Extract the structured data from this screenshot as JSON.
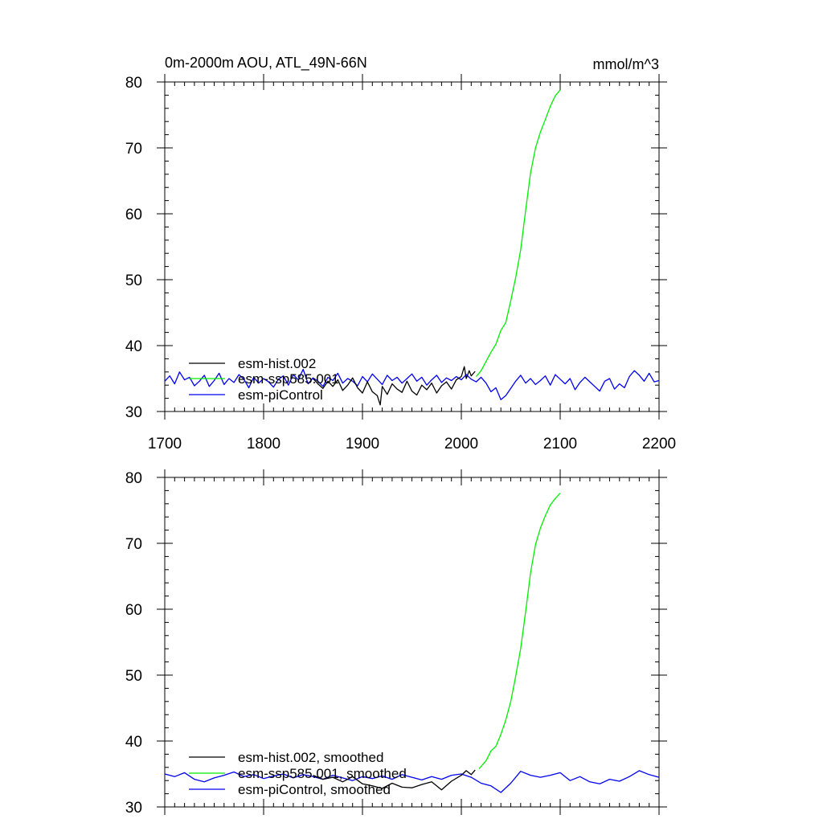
{
  "header": {
    "title": "0m-2000m AOU, ATL_49N-66N",
    "units": "mmol/m^3"
  },
  "colors": {
    "esm_hist": "#000000",
    "esm_ssp585": "#00ee00",
    "esm_piControl": "#0000ee"
  },
  "chart_data": [
    {
      "type": "line",
      "panel": "top",
      "xlim": [
        1700,
        2200
      ],
      "ylim": [
        30,
        80
      ],
      "x_ticks": [
        1700,
        1800,
        1900,
        2000,
        2100,
        2200
      ],
      "x_tick_labels": [
        "1700",
        "1800",
        "1900",
        "2000",
        "2100",
        "2200"
      ],
      "y_ticks": [
        30,
        40,
        50,
        60,
        70,
        80
      ],
      "y_tick_labels": [
        "30",
        "40",
        "50",
        "60",
        "70",
        "80"
      ],
      "legend_position": "lower-left",
      "series": [
        {
          "name": "esm-hist.002",
          "color": "#000000",
          "x": [
            1850,
            1855,
            1860,
            1865,
            1870,
            1875,
            1880,
            1885,
            1890,
            1895,
            1900,
            1905,
            1910,
            1915,
            1918,
            1920,
            1925,
            1930,
            1935,
            1940,
            1945,
            1950,
            1955,
            1960,
            1965,
            1970,
            1975,
            1980,
            1985,
            1990,
            1995,
            2000,
            2003,
            2005,
            2008,
            2010,
            2014
          ],
          "y": [
            35.0,
            34.2,
            33.5,
            34.6,
            33.8,
            34.8,
            33.2,
            34.0,
            35.1,
            33.6,
            32.8,
            34.5,
            33.0,
            32.4,
            31.0,
            33.8,
            32.6,
            34.2,
            33.4,
            32.9,
            34.6,
            33.1,
            32.5,
            34.0,
            33.3,
            34.3,
            32.8,
            33.9,
            34.5,
            33.4,
            34.8,
            35.3,
            36.8,
            35.0,
            36.2,
            35.4,
            36.1
          ]
        },
        {
          "name": "esm-ssp585.001",
          "color": "#00ee00",
          "x": [
            2015,
            2020,
            2025,
            2030,
            2035,
            2040,
            2045,
            2050,
            2055,
            2060,
            2065,
            2070,
            2075,
            2080,
            2085,
            2090,
            2095,
            2100
          ],
          "y": [
            35.3,
            36.2,
            37.6,
            39.0,
            40.2,
            42.3,
            43.5,
            46.8,
            50.3,
            54.5,
            60.5,
            66.2,
            70.0,
            72.4,
            74.3,
            76.3,
            77.9,
            78.8
          ]
        },
        {
          "name": "esm-piControl",
          "color": "#0000ee",
          "x": [
            1700,
            1705,
            1710,
            1715,
            1720,
            1725,
            1730,
            1735,
            1740,
            1745,
            1750,
            1755,
            1760,
            1765,
            1770,
            1775,
            1780,
            1785,
            1790,
            1795,
            1800,
            1805,
            1810,
            1815,
            1820,
            1825,
            1830,
            1835,
            1840,
            1845,
            1850,
            1855,
            1860,
            1865,
            1870,
            1875,
            1880,
            1885,
            1890,
            1895,
            1900,
            1905,
            1910,
            1915,
            1920,
            1925,
            1930,
            1935,
            1940,
            1945,
            1950,
            1955,
            1960,
            1965,
            1970,
            1975,
            1980,
            1985,
            1990,
            1995,
            2000,
            2005,
            2010,
            2015,
            2020,
            2025,
            2030,
            2035,
            2040,
            2045,
            2050,
            2055,
            2060,
            2065,
            2070,
            2075,
            2080,
            2085,
            2090,
            2095,
            2100,
            2105,
            2110,
            2115,
            2120,
            2125,
            2130,
            2135,
            2140,
            2145,
            2150,
            2155,
            2160,
            2165,
            2170,
            2175,
            2180,
            2185,
            2190,
            2195,
            2200
          ],
          "y": [
            34.6,
            35.4,
            34.2,
            36.0,
            34.8,
            35.2,
            33.9,
            34.6,
            35.5,
            33.8,
            34.7,
            35.8,
            34.1,
            35.0,
            34.4,
            35.6,
            34.9,
            33.6,
            35.2,
            34.3,
            35.0,
            34.5,
            33.7,
            34.9,
            35.4,
            34.0,
            35.6,
            34.8,
            36.4,
            34.2,
            35.1,
            34.6,
            33.8,
            35.2,
            34.7,
            35.8,
            34.3,
            35.0,
            34.6,
            33.9,
            35.3,
            34.5,
            35.7,
            34.9,
            34.1,
            35.5,
            34.7,
            35.2,
            34.3,
            35.0,
            35.7,
            34.6,
            35.2,
            34.0,
            34.8,
            35.5,
            34.4,
            35.1,
            34.7,
            35.3,
            34.8,
            35.6,
            34.9,
            34.5,
            35.2,
            34.3,
            33.0,
            33.6,
            31.8,
            32.4,
            33.5,
            34.6,
            35.5,
            34.3,
            35.0,
            34.1,
            34.7,
            35.4,
            34.0,
            35.6,
            34.9,
            34.2,
            35.0,
            33.3,
            34.4,
            35.2,
            34.5,
            33.8,
            33.1,
            34.6,
            35.0,
            33.4,
            34.2,
            33.6,
            35.3,
            36.2,
            35.5,
            34.6,
            35.8,
            34.5,
            34.7
          ]
        }
      ]
    },
    {
      "type": "line",
      "panel": "bottom",
      "xlim": [
        1700,
        2200
      ],
      "ylim": [
        30,
        80
      ],
      "y_ticks": [
        30,
        40,
        50,
        60,
        70,
        80
      ],
      "y_tick_labels": [
        "30",
        "40",
        "50",
        "60",
        "70",
        "80"
      ],
      "legend_position": "lower-left",
      "series": [
        {
          "name": "esm-hist.002, smoothed",
          "color": "#000000",
          "x": [
            1850,
            1860,
            1870,
            1880,
            1890,
            1900,
            1910,
            1920,
            1930,
            1940,
            1950,
            1960,
            1970,
            1980,
            1990,
            2000,
            2005,
            2010,
            2014
          ],
          "y": [
            34.8,
            34.2,
            34.5,
            33.8,
            34.6,
            33.5,
            33.2,
            32.8,
            33.6,
            33.0,
            32.9,
            33.4,
            33.8,
            32.6,
            33.9,
            34.8,
            35.5,
            34.9,
            35.6
          ]
        },
        {
          "name": "esm-ssp585.001, smoothed",
          "color": "#00ee00",
          "x": [
            2018,
            2025,
            2030,
            2035,
            2040,
            2045,
            2050,
            2055,
            2060,
            2065,
            2070,
            2075,
            2080,
            2085,
            2090,
            2095,
            2100
          ],
          "y": [
            35.8,
            37.0,
            38.5,
            39.2,
            41.0,
            43.2,
            46.0,
            49.8,
            54.0,
            59.6,
            65.5,
            69.8,
            72.3,
            74.2,
            75.8,
            76.8,
            77.6
          ]
        },
        {
          "name": "esm-piControl, smoothed",
          "color": "#0000ee",
          "x": [
            1700,
            1710,
            1720,
            1730,
            1740,
            1750,
            1760,
            1770,
            1780,
            1790,
            1800,
            1810,
            1820,
            1830,
            1840,
            1850,
            1860,
            1870,
            1880,
            1890,
            1900,
            1910,
            1920,
            1930,
            1940,
            1950,
            1960,
            1970,
            1980,
            1990,
            2000,
            2010,
            2020,
            2030,
            2040,
            2050,
            2060,
            2070,
            2080,
            2090,
            2100,
            2110,
            2120,
            2130,
            2140,
            2150,
            2160,
            2170,
            2180,
            2190,
            2200
          ],
          "y": [
            35.0,
            34.6,
            35.2,
            34.2,
            33.8,
            34.4,
            34.8,
            35.3,
            34.6,
            34.9,
            34.3,
            34.7,
            35.0,
            34.4,
            34.9,
            34.6,
            34.2,
            34.8,
            34.4,
            34.0,
            34.6,
            34.3,
            34.7,
            34.2,
            34.9,
            34.5,
            34.1,
            34.6,
            34.2,
            34.8,
            35.0,
            34.5,
            33.6,
            33.2,
            32.2,
            33.6,
            35.4,
            34.8,
            34.5,
            34.8,
            35.2,
            34.0,
            34.6,
            33.8,
            33.5,
            34.2,
            33.9,
            34.6,
            35.5,
            34.9,
            34.5
          ]
        }
      ]
    }
  ]
}
